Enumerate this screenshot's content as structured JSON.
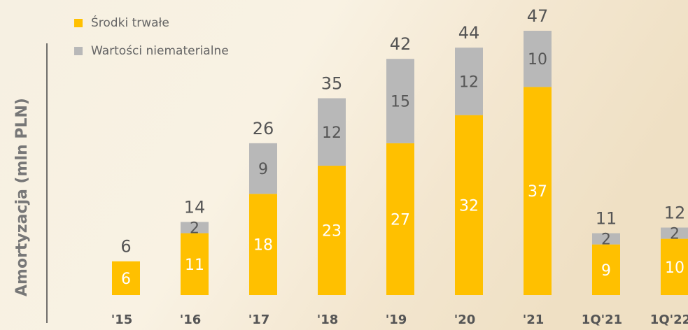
{
  "chart_data": {
    "type": "stacked_bar",
    "y_axis_label": "Amortyzacja (mln PLN)",
    "categories": [
      "'15",
      "'16",
      "'17",
      "'18",
      "'19",
      "'20",
      "'21",
      "1Q'21",
      "1Q'22"
    ],
    "series": [
      {
        "name": "Środki trwałe",
        "color": "#ffc000",
        "values": [
          6,
          11,
          18,
          23,
          27,
          32,
          37,
          9,
          10
        ]
      },
      {
        "name": "Wartości niematerialne",
        "color": "#b8b8b8",
        "values": [
          null,
          2,
          9,
          12,
          15,
          12,
          10,
          2,
          2
        ]
      }
    ],
    "totals": [
      6,
      14,
      26,
      35,
      42,
      44,
      47,
      11,
      12
    ]
  }
}
